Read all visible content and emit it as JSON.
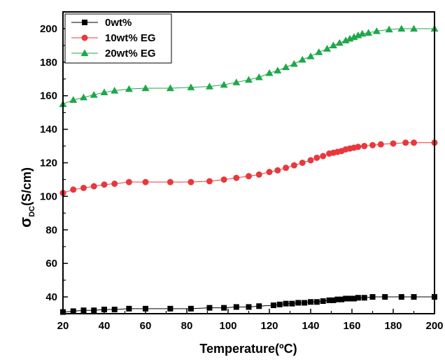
{
  "chart_data": {
    "type": "line",
    "xlabel": "Temperature(ºC)",
    "ylabel_main": "σ",
    "ylabel_sub": "DC",
    "ylabel_unit": "(S/cm)",
    "xlim": [
      20,
      200
    ],
    "ylim": [
      30,
      210
    ],
    "xticks": [
      20,
      40,
      60,
      80,
      100,
      120,
      140,
      160,
      180,
      200
    ],
    "yticks": [
      40,
      60,
      80,
      100,
      120,
      140,
      160,
      180,
      200
    ],
    "grid": false,
    "legend": "top-left",
    "series": [
      {
        "name": "0wt%",
        "color": "#000000",
        "marker": "square",
        "x": [
          20,
          25,
          30,
          35,
          40,
          45,
          52,
          60,
          72,
          82,
          91,
          98,
          104,
          110,
          115,
          122,
          125,
          128,
          131,
          134,
          137,
          140,
          143,
          146,
          149,
          151,
          153,
          155,
          157,
          159,
          161,
          163,
          166,
          170,
          176,
          184,
          190,
          200
        ],
        "y": [
          31,
          31.5,
          32,
          32,
          32.5,
          32.5,
          33,
          33,
          33,
          33,
          33.5,
          33.5,
          34,
          34,
          34.5,
          35,
          35.5,
          36,
          36,
          36.5,
          36.5,
          37,
          37,
          37.5,
          38,
          38,
          38.5,
          38.5,
          39,
          39,
          39,
          39.5,
          39.5,
          40,
          40,
          40,
          40,
          40
        ]
      },
      {
        "name": "10wt% EG",
        "color": "#e8383d",
        "marker": "circle",
        "x": [
          20,
          25,
          30,
          35,
          40,
          45,
          52,
          60,
          72,
          82,
          91,
          98,
          104,
          110,
          115,
          120,
          124,
          128,
          132,
          136,
          140,
          143,
          146,
          149,
          151,
          153,
          155,
          157,
          159,
          161,
          163,
          166,
          170,
          174,
          180,
          186,
          190,
          200
        ],
        "y": [
          102,
          104,
          105,
          106,
          107,
          107.5,
          108.5,
          108.5,
          108.5,
          108.5,
          109,
          110,
          111,
          112,
          113,
          114.5,
          115.5,
          117,
          118.5,
          120,
          121.5,
          123,
          124,
          125.5,
          126,
          126.5,
          127,
          128,
          128.5,
          129,
          129.5,
          130,
          130.5,
          131,
          131.5,
          132,
          132,
          132
        ]
      },
      {
        "name": "20wt% EG",
        "color": "#1da84a",
        "marker": "triangle",
        "x": [
          20,
          25,
          30,
          35,
          40,
          45,
          52,
          60,
          72,
          82,
          91,
          98,
          104,
          110,
          115,
          120,
          124,
          128,
          132,
          136,
          140,
          144,
          148,
          151,
          154,
          157,
          159,
          161,
          163,
          165,
          168,
          172,
          178,
          184,
          190,
          200
        ],
        "y": [
          155,
          157.5,
          159,
          160.5,
          162,
          163,
          164,
          164.5,
          164.5,
          165,
          165.5,
          166.5,
          168,
          169.5,
          171,
          173.5,
          175,
          177,
          179,
          181.5,
          183.5,
          186,
          188,
          190,
          191.5,
          193,
          194,
          195,
          196,
          197,
          197.5,
          198.5,
          199.5,
          200,
          200,
          200
        ]
      }
    ]
  }
}
